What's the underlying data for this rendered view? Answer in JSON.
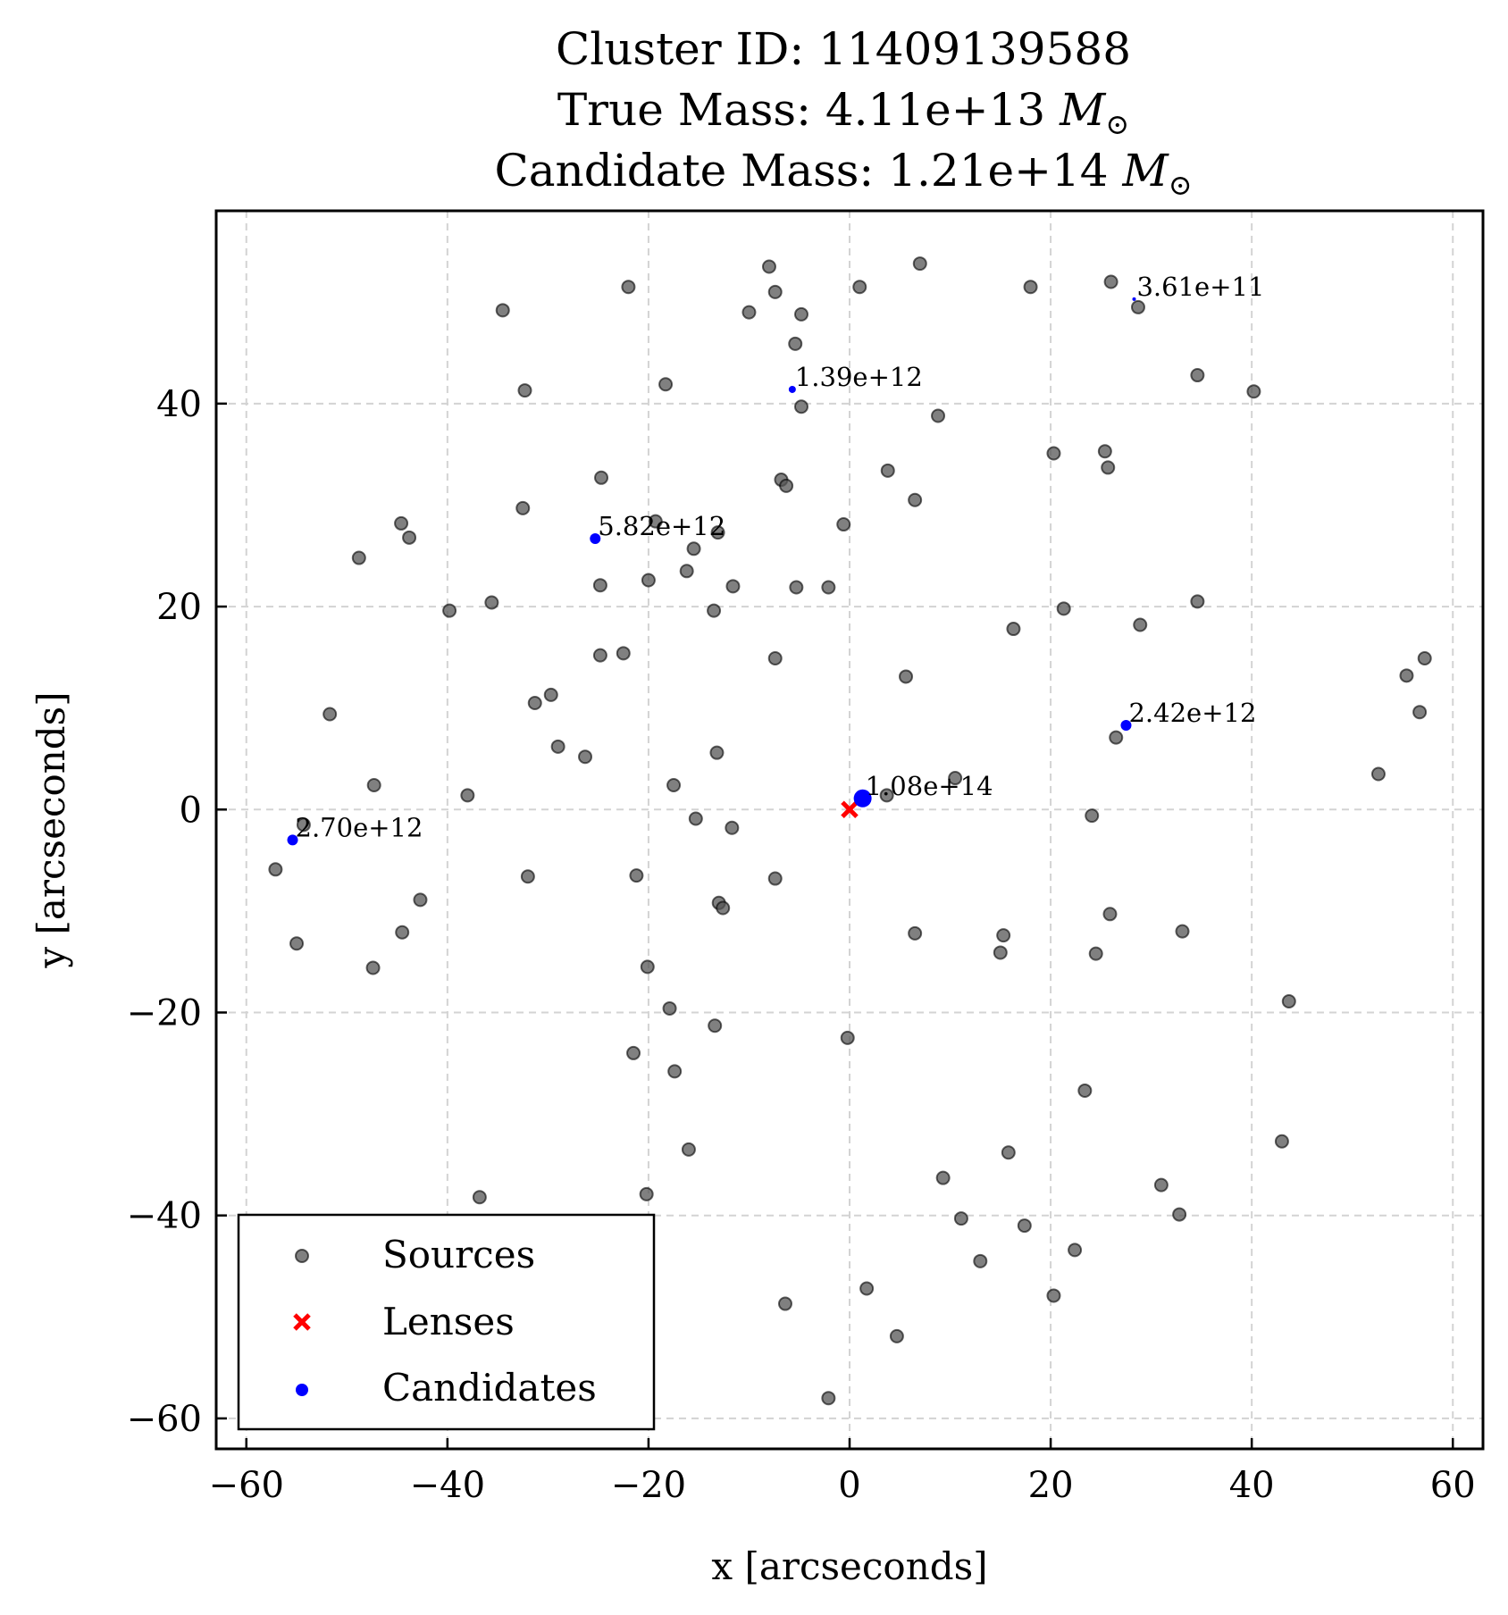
{
  "chart_data": {
    "type": "scatter",
    "title": {
      "line1": "Cluster ID: 11409139588",
      "line2_prefix": "True Mass: 4.11e+13 ",
      "line3_prefix": "Candidate Mass: 1.21e+14 ",
      "mass_unit": "M",
      "mass_unit_sub": "⊙"
    },
    "xlabel": "x [arcseconds]",
    "ylabel": "y [arcseconds]",
    "xlim": [
      -63,
      63
    ],
    "ylim": [
      -63,
      59
    ],
    "xticks": [
      -60,
      -40,
      -20,
      0,
      20,
      40,
      60
    ],
    "yticks": [
      -60,
      -40,
      -20,
      0,
      20,
      40
    ],
    "xtick_labels": [
      "−60",
      "−40",
      "−20",
      "0",
      "20",
      "40",
      "60"
    ],
    "ytick_labels": [
      "−60",
      "−40",
      "−20",
      "0",
      "20",
      "40"
    ],
    "grid": true,
    "legend": {
      "placement": "lower-left",
      "entries": [
        {
          "label": "Sources",
          "marker": "circle",
          "color": "#555555"
        },
        {
          "label": "Lenses",
          "marker": "x",
          "color": "#ff0000"
        },
        {
          "label": "Candidates",
          "marker": "circle",
          "color": "#0000ff"
        }
      ]
    },
    "series": [
      {
        "name": "Sources",
        "color": "#555555",
        "points": [
          [
            -22,
            51.5
          ],
          [
            -8,
            53.5
          ],
          [
            7,
            53.8
          ],
          [
            26,
            52
          ],
          [
            1,
            51.5
          ],
          [
            -7.4,
            51
          ],
          [
            18,
            51.5
          ],
          [
            28.7,
            49.5
          ],
          [
            -34.5,
            49.2
          ],
          [
            -10,
            49
          ],
          [
            -4.8,
            48.8
          ],
          [
            -5.4,
            45.9
          ],
          [
            -18.3,
            41.9
          ],
          [
            -32.3,
            41.3
          ],
          [
            34.6,
            42.8
          ],
          [
            40.2,
            41.2
          ],
          [
            -4.8,
            39.7
          ],
          [
            8.8,
            38.8
          ],
          [
            20.3,
            35.1
          ],
          [
            25.4,
            35.3
          ],
          [
            25.7,
            33.7
          ],
          [
            3.8,
            33.4
          ],
          [
            -24.7,
            32.7
          ],
          [
            -6.8,
            32.5
          ],
          [
            -6.3,
            31.9
          ],
          [
            6.5,
            30.5
          ],
          [
            -32.5,
            29.7
          ],
          [
            -44.6,
            28.2
          ],
          [
            -19.3,
            28.4
          ],
          [
            -0.6,
            28.1
          ],
          [
            -43.8,
            26.8
          ],
          [
            -13.1,
            27.3
          ],
          [
            -15.5,
            25.7
          ],
          [
            -48.8,
            24.8
          ],
          [
            -16.2,
            23.5
          ],
          [
            -20,
            22.6
          ],
          [
            -24.8,
            22.1
          ],
          [
            -11.6,
            22
          ],
          [
            -5.3,
            21.9
          ],
          [
            -2.1,
            21.9
          ],
          [
            -35.6,
            20.4
          ],
          [
            34.6,
            20.5
          ],
          [
            21.3,
            19.8
          ],
          [
            -39.8,
            19.6
          ],
          [
            -13.5,
            19.6
          ],
          [
            28.9,
            18.2
          ],
          [
            16.3,
            17.8
          ],
          [
            57.2,
            14.9
          ],
          [
            -24.8,
            15.2
          ],
          [
            -22.5,
            15.4
          ],
          [
            -7.4,
            14.9
          ],
          [
            55.4,
            13.2
          ],
          [
            5.6,
            13.1
          ],
          [
            -29.7,
            11.3
          ],
          [
            -31.3,
            10.5
          ],
          [
            56.7,
            9.6
          ],
          [
            -51.7,
            9.4
          ],
          [
            26.5,
            7.1
          ],
          [
            -29,
            6.2
          ],
          [
            -13.2,
            5.6
          ],
          [
            -26.3,
            5.2
          ],
          [
            52.6,
            3.5
          ],
          [
            10.5,
            3.1
          ],
          [
            -47.3,
            2.4
          ],
          [
            -17.5,
            2.4
          ],
          [
            -38,
            1.4
          ],
          [
            3.7,
            1.4
          ],
          [
            -54.3,
            -1.5
          ],
          [
            -15.3,
            -0.9
          ],
          [
            24.1,
            -0.6
          ],
          [
            -11.7,
            -1.8
          ],
          [
            -57.1,
            -5.9
          ],
          [
            -21.2,
            -6.5
          ],
          [
            -32,
            -6.6
          ],
          [
            -7.4,
            -6.8
          ],
          [
            -13,
            -9.2
          ],
          [
            -12.6,
            -9.7
          ],
          [
            -42.7,
            -8.9
          ],
          [
            25.9,
            -10.3
          ],
          [
            -44.5,
            -12.1
          ],
          [
            6.5,
            -12.2
          ],
          [
            15.3,
            -12.4
          ],
          [
            33.1,
            -12
          ],
          [
            -55,
            -13.2
          ],
          [
            15,
            -14.1
          ],
          [
            24.5,
            -14.2
          ],
          [
            -47.4,
            -15.6
          ],
          [
            -20.1,
            -15.5
          ],
          [
            43.7,
            -18.9
          ],
          [
            -17.9,
            -19.6
          ],
          [
            -13.4,
            -21.3
          ],
          [
            -0.2,
            -22.5
          ],
          [
            -21.5,
            -24
          ],
          [
            -17.4,
            -25.8
          ],
          [
            23.4,
            -27.7
          ],
          [
            43,
            -32.7
          ],
          [
            -16,
            -33.5
          ],
          [
            15.8,
            -33.8
          ],
          [
            9.3,
            -36.3
          ],
          [
            31,
            -37
          ],
          [
            -36.8,
            -38.2
          ],
          [
            -20.2,
            -37.9
          ],
          [
            32.8,
            -39.9
          ],
          [
            11.1,
            -40.3
          ],
          [
            17.4,
            -41
          ],
          [
            22.4,
            -43.4
          ],
          [
            13,
            -44.5
          ],
          [
            -55,
            -44.3
          ],
          [
            1.7,
            -47.2
          ],
          [
            20.3,
            -47.9
          ],
          [
            -6.4,
            -48.7
          ],
          [
            4.7,
            -51.9
          ],
          [
            -2.1,
            -58
          ]
        ]
      },
      {
        "name": "Lenses",
        "color": "#ff0000",
        "points": [
          [
            0,
            0
          ]
        ]
      },
      {
        "name": "Candidates",
        "color": "#0000ff",
        "points": [
          {
            "x": 1.3,
            "y": 1.1,
            "mass": "1.08e+14",
            "size": 10
          },
          {
            "x": -25.3,
            "y": 26.7,
            "mass": "5.82e+12",
            "size": 6
          },
          {
            "x": -55.4,
            "y": -3,
            "mass": "2.70e+12",
            "size": 6
          },
          {
            "x": 27.5,
            "y": 8.3,
            "mass": "2.42e+12",
            "size": 6
          },
          {
            "x": -5.7,
            "y": 41.4,
            "mass": "1.39e+12",
            "size": 4
          },
          {
            "x": 28.3,
            "y": 50.3,
            "mass": "3.61e+11",
            "size": 2
          }
        ]
      }
    ]
  }
}
